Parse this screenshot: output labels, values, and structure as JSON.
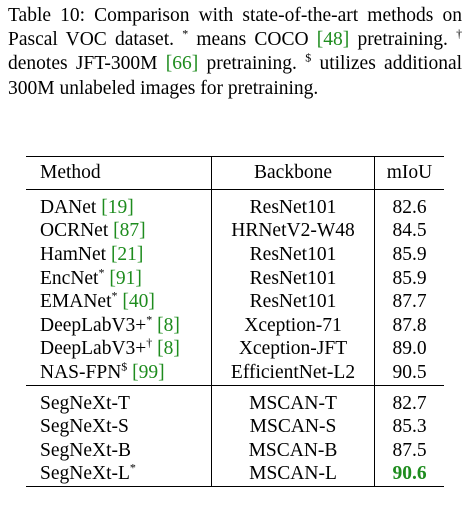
{
  "caption": {
    "label": "Table 10:",
    "lead": "Comparison with state-of-the-art methods on Pascal VOC dataset.",
    "notes": [
      {
        "mark": "*",
        "before": "means COCO",
        "ref": "[48]",
        "after": "pretraining."
      },
      {
        "mark": "†",
        "before": "denotes JFT-300M",
        "ref": "[66]",
        "after": "pretraining."
      },
      {
        "mark": "$",
        "before": "utilizes additional 300M unlabeled images for pretraining.",
        "ref": "",
        "after": ""
      }
    ]
  },
  "table": {
    "header": [
      "Method",
      "Backbone",
      "mIoU"
    ],
    "groups": [
      [
        {
          "method": "DANet",
          "sup": "",
          "ref": "[19]",
          "backbone": "ResNet101",
          "miou": "82.6"
        },
        {
          "method": "OCRNet",
          "sup": "",
          "ref": "[87]",
          "backbone": "HRNetV2-W48",
          "miou": "84.5"
        },
        {
          "method": "HamNet",
          "sup": "",
          "ref": "[21]",
          "backbone": "ResNet101",
          "miou": "85.9"
        },
        {
          "method": "EncNet",
          "sup": "*",
          "ref": "[91]",
          "backbone": "ResNet101",
          "miou": "85.9"
        },
        {
          "method": "EMANet",
          "sup": "*",
          "ref": "[40]",
          "backbone": "ResNet101",
          "miou": "87.7"
        },
        {
          "method": "DeepLabV3+",
          "sup": "*",
          "ref": "[8]",
          "backbone": "Xception-71",
          "miou": "87.8"
        },
        {
          "method": "DeepLabV3+",
          "sup": "†",
          "ref": "[8]",
          "backbone": "Xception-JFT",
          "miou": "89.0"
        },
        {
          "method": "NAS-FPN",
          "sup": "$",
          "ref": "[99]",
          "backbone": "EfficientNet-L2",
          "miou": "90.5"
        }
      ],
      [
        {
          "method": "SegNeXt-T",
          "sup": "",
          "ref": "",
          "backbone": "MSCAN-T",
          "miou": "82.7"
        },
        {
          "method": "SegNeXt-S",
          "sup": "",
          "ref": "",
          "backbone": "MSCAN-S",
          "miou": "85.3"
        },
        {
          "method": "SegNeXt-B",
          "sup": "",
          "ref": "",
          "backbone": "MSCAN-B",
          "miou": "87.5"
        },
        {
          "method": "SegNeXt-L",
          "sup": "*",
          "ref": "",
          "backbone": "MSCAN-L",
          "miou": "90.6"
        }
      ]
    ]
  }
}
